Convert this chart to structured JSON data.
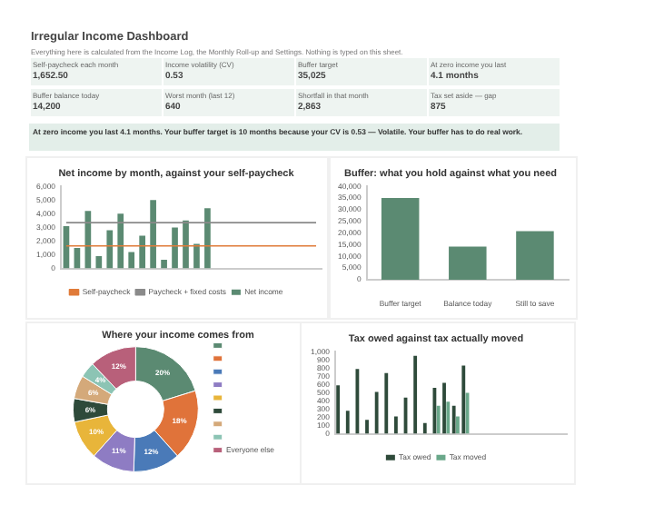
{
  "chart_data": [
    {
      "type": "other",
      "title": "Irregular Income Dashboard",
      "subtitle": "Everything here is calculated from the Income Log, the Monthly Roll-up and Settings. Nothing is typed on this sheet.",
      "annotations": [
        "Self-paycheck each month",
        "1,652.50",
        "Income volatility (CV)",
        "0.53",
        "Buffer target",
        "35,025",
        "At zero income you last",
        "4.1 months",
        "Buffer balance today",
        "14,200",
        "Worst month (last 12)",
        "640",
        "Shortfall in that month",
        "2,863",
        "Tax set aside — gap",
        "875",
        "At zero income you last 4.1 months. Your buffer target is 10 months because your CV is 0.53 — Volatile. Your buffer has to do real work."
      ]
    },
    {
      "type": "bar",
      "title": "Net income by month, against your self-paycheck",
      "categories": [
        null,
        null,
        null,
        null,
        null,
        null,
        null,
        null,
        null,
        null,
        null,
        null,
        null,
        null,
        null,
        null,
        null,
        null,
        null,
        null,
        null,
        null,
        null,
        null
      ],
      "series": [
        {
          "name": "Net income",
          "color": "#5b8a72",
          "values": [
            3100,
            1500,
            4200,
            900,
            2800,
            4000,
            1200,
            2400,
            5000,
            640,
            3000,
            3500,
            1800,
            4400,
            null,
            null,
            null,
            null,
            null,
            null,
            null,
            null,
            null,
            null
          ]
        },
        {
          "name": "Self-paycheck",
          "type": "line",
          "color": "#e07b39",
          "values": [
            1652.5,
            1652.5,
            1652.5,
            1652.5,
            1652.5,
            1652.5,
            1652.5,
            1652.5,
            1652.5,
            1652.5,
            1652.5,
            1652.5,
            1652.5,
            1652.5,
            1652.5,
            1652.5,
            1652.5,
            1652.5,
            1652.5,
            1652.5,
            1652.5,
            1652.5,
            1652.5,
            1652.5
          ]
        },
        {
          "name": "Paycheck + fixed costs",
          "type": "line",
          "color": "#8a8a8a",
          "values": [
            3350,
            3350,
            3350,
            3350,
            3350,
            3350,
            3350,
            3350,
            3350,
            3350,
            3350,
            3350,
            3350,
            3350,
            3350,
            3350,
            3350,
            3350,
            3350,
            3350,
            3350,
            3350,
            3350,
            3350
          ]
        }
      ],
      "ylim": [
        0,
        6000
      ],
      "yticks": [
        0,
        {
          "value": 1000,
          "label": "1,000"
        },
        {
          "value": 2000,
          "label": "2,000"
        },
        {
          "value": 3000,
          "label": "3,000"
        },
        {
          "value": 4000,
          "label": "4,000"
        },
        {
          "value": 5000,
          "label": "5,000"
        },
        {
          "value": 6000,
          "label": "6,000"
        }
      ],
      "legend": "bottom",
      "tick_labels": "y",
      "marker": "none"
    },
    {
      "type": "bar",
      "title": "Buffer: what you hold against what you need",
      "categories": [
        "Buffer target",
        "Balance today",
        "Still to save"
      ],
      "values": [
        35025,
        14200,
        20825
      ],
      "color": "#5b8a72",
      "ylim": [
        0,
        40000
      ],
      "yticks": [
        0,
        {
          "value": 5000,
          "label": "5,000"
        },
        {
          "value": 10000,
          "label": "10,000"
        },
        {
          "value": 15000,
          "label": "15,000"
        },
        {
          "value": 20000,
          "label": "20,000"
        },
        {
          "value": 25000,
          "label": "25,000"
        },
        {
          "value": 30000,
          "label": "30,000"
        },
        {
          "value": 35000,
          "label": "35,000"
        },
        {
          "value": 40000,
          "label": "40,000"
        }
      ]
    },
    {
      "type": "donut",
      "title": "Where your income comes from",
      "categories": [
        null,
        null,
        null,
        null,
        null,
        null,
        null,
        null,
        "Everyone else"
      ],
      "values": [
        20,
        18,
        12,
        11,
        10,
        6,
        6,
        4,
        12
      ],
      "colors": [
        "#5b8a72",
        "#e0733a",
        "#4a7ab8",
        "#8e7cc3",
        "#e8b53a",
        "#2e4a3a",
        "#d4a97a",
        "#8cc4b4",
        "#b8607a"
      ],
      "value_labels": [
        "20%",
        "18%",
        "12%",
        "11%",
        "10%",
        "6%",
        "6%",
        "4%",
        "12%"
      ],
      "legend": "right"
    },
    {
      "type": "bar",
      "title": "Tax owed against tax actually moved",
      "categories": [
        null,
        null,
        null,
        null,
        null,
        null,
        null,
        null,
        null,
        null,
        null,
        null,
        null,
        null,
        null,
        null,
        null,
        null,
        null,
        null,
        null,
        null,
        null,
        null
      ],
      "series": [
        {
          "name": "Tax owed",
          "color": "#2e4a3a",
          "values": [
            590,
            280,
            790,
            170,
            510,
            740,
            210,
            440,
            950,
            130,
            560,
            620,
            340,
            830,
            null,
            null,
            null,
            null,
            null,
            null,
            null,
            null,
            null,
            null
          ]
        },
        {
          "name": "Tax moved",
          "color": "#6aa88a",
          "values": [
            null,
            null,
            null,
            null,
            null,
            null,
            null,
            null,
            null,
            null,
            340,
            390,
            210,
            500,
            null,
            null,
            null,
            null,
            null,
            null,
            null,
            null,
            null,
            null
          ]
        }
      ],
      "ylim": [
        0,
        1000
      ],
      "yticks": [
        0,
        100,
        200,
        300,
        400,
        500,
        600,
        700,
        800,
        900,
        {
          "value": 1000,
          "label": "1,000"
        }
      ],
      "legend": "bottom",
      "tick_labels": "y"
    }
  ]
}
